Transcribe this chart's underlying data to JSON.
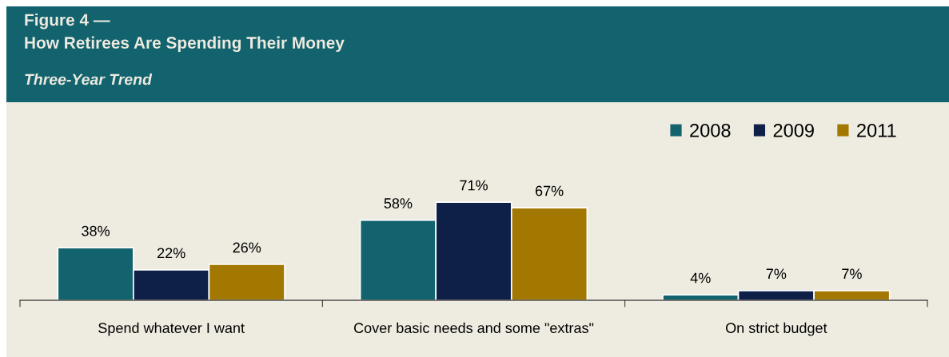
{
  "chart_data": {
    "type": "bar",
    "title": "Figure 4 —\nHow Retirees Are Spending Their Money",
    "subtitle": "Three-Year Trend",
    "categories": [
      "Spend whatever I want",
      "Cover basic needs and some \"extras\"",
      "On strict budget"
    ],
    "series": [
      {
        "name": "2008",
        "color": "#12636e",
        "values": [
          38,
          58,
          4
        ],
        "value_labels": [
          "38%",
          "58%",
          "4%"
        ]
      },
      {
        "name": "2009",
        "color": "#0e1f48",
        "values": [
          22,
          71,
          7
        ],
        "value_labels": [
          "22%",
          "71%",
          "7%"
        ]
      },
      {
        "name": "2011",
        "color": "#a37800",
        "values": [
          26,
          67,
          7
        ],
        "value_labels": [
          "26%",
          "67%",
          "7%"
        ]
      }
    ],
    "legend": "top right",
    "grid": false
  }
}
